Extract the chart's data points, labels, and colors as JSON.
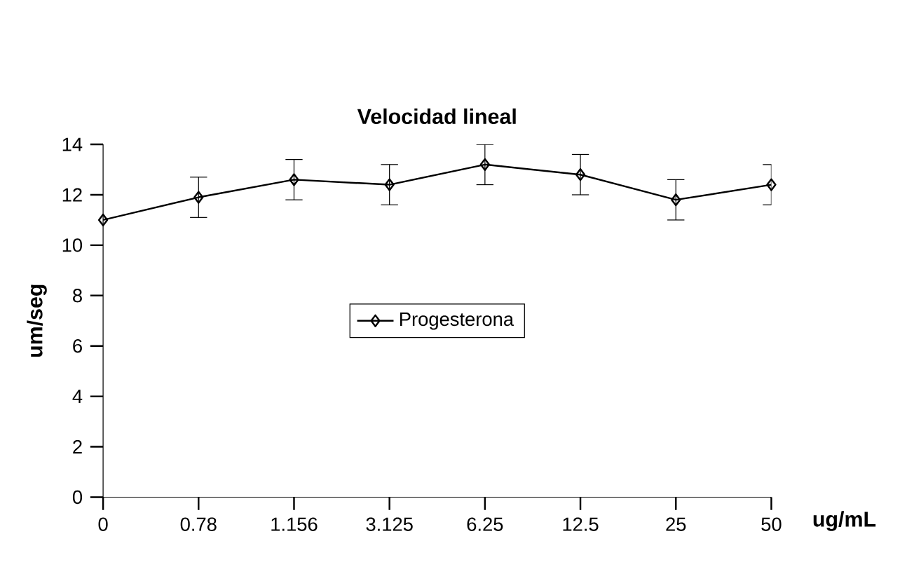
{
  "chart_data": {
    "type": "line",
    "title": "Velocidad lineal",
    "xlabel": "ug/mL",
    "ylabel": "um/seg",
    "categories": [
      "0",
      "0.78",
      "1.156",
      "3.125",
      "6.25",
      "12.5",
      "25",
      "50"
    ],
    "series": [
      {
        "name": "Progesterona",
        "color": "#000000",
        "values": [
          11.0,
          11.9,
          12.6,
          12.4,
          13.2,
          12.8,
          11.8,
          12.4
        ],
        "errors": [
          null,
          0.8,
          0.8,
          0.8,
          0.8,
          0.8,
          0.8,
          0.8
        ]
      }
    ],
    "ylim": [
      0,
      14
    ],
    "yticks": [
      0,
      2,
      4,
      6,
      8,
      10,
      12,
      14
    ],
    "marker": "diamond",
    "legend": "center",
    "grid": false
  }
}
